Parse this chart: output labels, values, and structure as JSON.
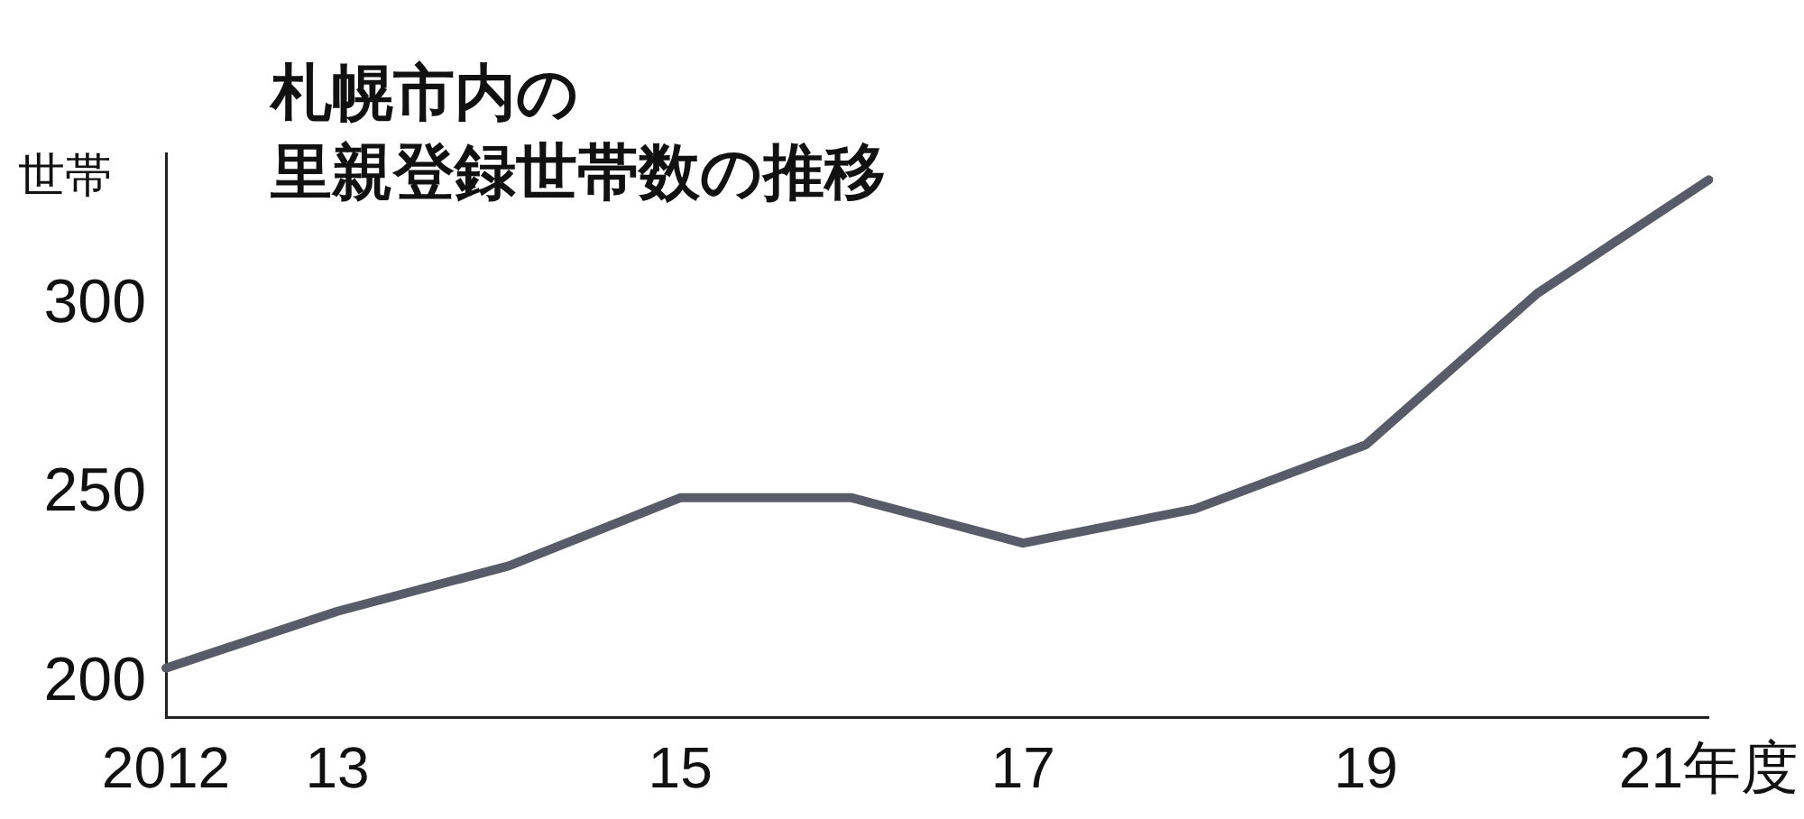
{
  "chart_data": {
    "type": "line",
    "title": "札幌市内の",
    "subtitle": "里親登録世帯数の推移",
    "ylabel": "世帯",
    "categories": [
      "2012",
      "13",
      null,
      "15",
      null,
      "17",
      null,
      "19",
      null,
      "21年度"
    ],
    "series": [
      {
        "color": "#585c68",
        "values": [
          204,
          219,
          231,
          249,
          249,
          237,
          246,
          263,
          303,
          333
        ]
      }
    ],
    "ylim": [
      191,
      340
    ],
    "yticks": [
      200,
      250,
      300
    ],
    "grid": false,
    "legend": false,
    "marker": "none",
    "line_style": "solid"
  }
}
